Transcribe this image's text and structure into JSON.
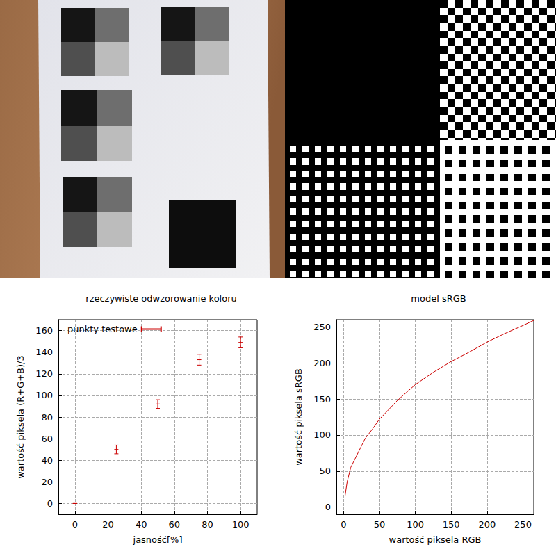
{
  "chart_data": [
    {
      "type": "scatter",
      "title": "rzeczywiste odwzorowanie koloru",
      "x_label": "jasność[%]",
      "y_label": "wartość piksela (R+G+B)/3",
      "series": [
        {
          "name": "punkty testowe",
          "color": "#cc0000",
          "x": [
            0,
            25,
            50,
            75,
            100
          ],
          "values": [
            0,
            50,
            92,
            133,
            149
          ],
          "errors": [
            0,
            4,
            4,
            5,
            5
          ]
        }
      ],
      "legend": "upper left",
      "grid": true,
      "xlim": [
        -10,
        110
      ],
      "xticks": [
        0,
        20,
        40,
        60,
        80,
        100
      ],
      "ylim": [
        -10,
        170
      ],
      "yticks": [
        0,
        20,
        40,
        60,
        80,
        100,
        120,
        140,
        160
      ]
    },
    {
      "type": "line",
      "title": "model sRGB",
      "x_label": "wartość piksela RGB",
      "y_label": "wartość piksela sRGB",
      "color": "#cc0000",
      "x": [
        2,
        5,
        10,
        20,
        30,
        40,
        50,
        75,
        100,
        125,
        150,
        175,
        200,
        225,
        250,
        265
      ],
      "values": [
        15,
        35,
        55,
        75,
        95,
        108,
        122,
        148,
        170,
        187,
        202,
        215,
        229,
        241,
        252,
        259
      ],
      "grid": true,
      "xlim": [
        -10,
        265
      ],
      "xticks": [
        0,
        50,
        100,
        150,
        200,
        250
      ],
      "ylim": [
        -10,
        260
      ],
      "yticks": [
        0,
        50,
        100,
        150,
        200,
        250
      ]
    }
  ]
}
